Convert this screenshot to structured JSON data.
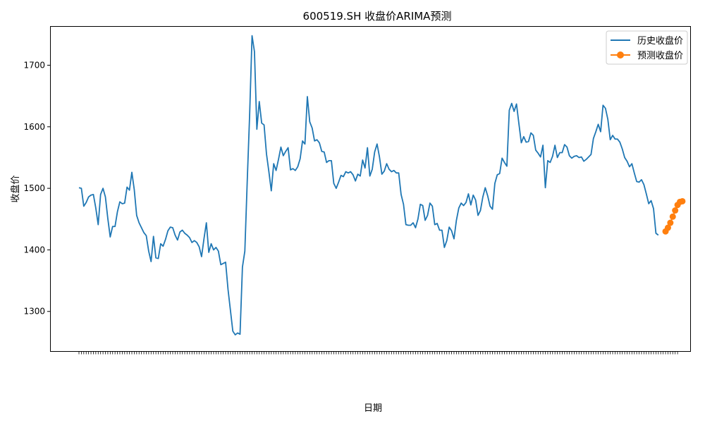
{
  "chart_data": {
    "type": "line",
    "title": "600519.SH 收盘价ARIMA预测",
    "xlabel": "日期",
    "ylabel": "收盘价",
    "ylim": [
      1235,
      1763
    ],
    "yticks": [
      1300,
      1400,
      1500,
      1600,
      1700
    ],
    "grid": false,
    "legend_position": "top-right",
    "x_tick_labels_note": "dense rotated date tick labels, illegible",
    "series": [
      {
        "name": "历史收盘价",
        "color": "#1f77b4",
        "marker": "none",
        "values": [
          1501,
          1500,
          1471,
          1477,
          1486,
          1489,
          1490,
          1468,
          1441,
          1490,
          1500,
          1486,
          1451,
          1421,
          1438,
          1438,
          1462,
          1478,
          1475,
          1476,
          1502,
          1497,
          1526,
          1498,
          1456,
          1444,
          1436,
          1428,
          1423,
          1398,
          1381,
          1422,
          1387,
          1386,
          1410,
          1406,
          1417,
          1431,
          1437,
          1436,
          1424,
          1416,
          1429,
          1432,
          1427,
          1424,
          1420,
          1412,
          1415,
          1412,
          1405,
          1389,
          1418,
          1444,
          1396,
          1410,
          1400,
          1404,
          1398,
          1376,
          1378,
          1380,
          1336,
          1302,
          1268,
          1262,
          1265,
          1263,
          1372,
          1398,
          1512,
          1620,
          1748,
          1722,
          1596,
          1641,
          1606,
          1603,
          1556,
          1527,
          1496,
          1540,
          1529,
          1547,
          1567,
          1553,
          1560,
          1566,
          1530,
          1532,
          1529,
          1535,
          1548,
          1577,
          1572,
          1649,
          1608,
          1598,
          1577,
          1579,
          1574,
          1560,
          1559,
          1542,
          1545,
          1545,
          1508,
          1500,
          1510,
          1521,
          1519,
          1527,
          1525,
          1527,
          1522,
          1512,
          1523,
          1520,
          1546,
          1533,
          1566,
          1520,
          1531,
          1559,
          1572,
          1551,
          1523,
          1528,
          1540,
          1531,
          1527,
          1529,
          1525,
          1525,
          1490,
          1474,
          1441,
          1440,
          1440,
          1444,
          1436,
          1450,
          1474,
          1472,
          1448,
          1456,
          1476,
          1471,
          1441,
          1443,
          1432,
          1432,
          1404,
          1415,
          1437,
          1431,
          1418,
          1448,
          1468,
          1476,
          1472,
          1477,
          1491,
          1473,
          1489,
          1481,
          1456,
          1464,
          1486,
          1501,
          1488,
          1471,
          1466,
          1508,
          1522,
          1524,
          1549,
          1542,
          1536,
          1627,
          1638,
          1625,
          1637,
          1605,
          1574,
          1584,
          1575,
          1576,
          1590,
          1586,
          1562,
          1557,
          1551,
          1570,
          1501,
          1545,
          1542,
          1552,
          1570,
          1550,
          1558,
          1558,
          1571,
          1567,
          1553,
          1549,
          1552,
          1553,
          1550,
          1551,
          1544,
          1547,
          1551,
          1555,
          1581,
          1592,
          1604,
          1592,
          1635,
          1630,
          1612,
          1579,
          1586,
          1580,
          1580,
          1575,
          1564,
          1550,
          1544,
          1535,
          1540,
          1525,
          1511,
          1510,
          1514,
          1506,
          1491,
          1475,
          1480,
          1467,
          1427,
          1424
        ]
      },
      {
        "name": "预测收盘价",
        "color": "#ff7f0e",
        "marker": "o",
        "start_index": 244,
        "values": [
          1430,
          1436,
          1444,
          1454,
          1464,
          1473,
          1478,
          1479
        ]
      }
    ]
  }
}
